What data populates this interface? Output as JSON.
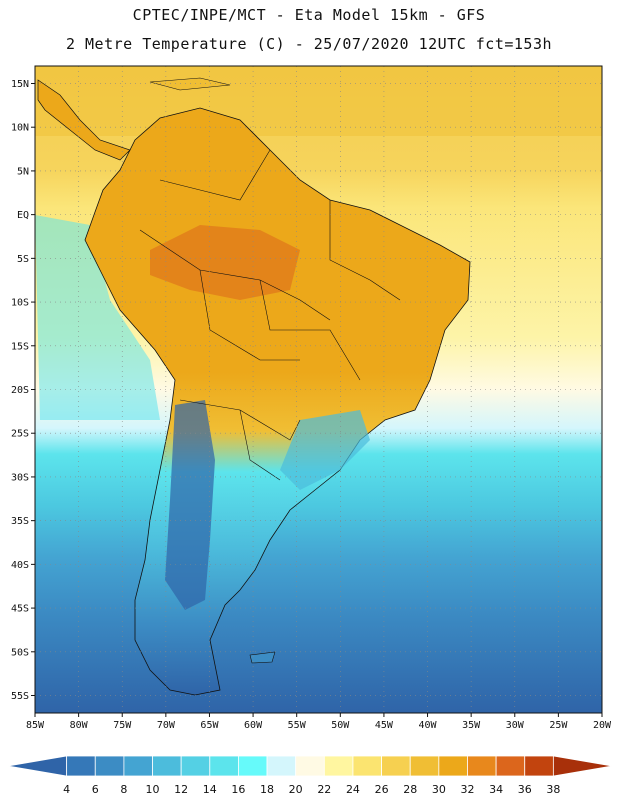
{
  "header": {
    "title_line1": "CPTEC/INPE/MCT -  Eta Model 15km - GFS",
    "title_line2": "2 Metre Temperature (C) - 25/07/2020 12UTC fct=153h"
  },
  "map": {
    "lat_labels": [
      "15N",
      "10N",
      "5N",
      "EQ",
      "5S",
      "10S",
      "15S",
      "20S",
      "25S",
      "30S",
      "35S",
      "40S",
      "45S",
      "50S",
      "55S"
    ],
    "lat_values": [
      15,
      10,
      5,
      0,
      -5,
      -10,
      -15,
      -20,
      -25,
      -30,
      -35,
      -40,
      -45,
      -50,
      -55
    ],
    "lon_labels": [
      "85W",
      "80W",
      "75W",
      "70W",
      "65W",
      "60W",
      "55W",
      "50W",
      "45W",
      "40W",
      "35W",
      "30W",
      "25W",
      "20W"
    ],
    "lon_values": [
      -85,
      -80,
      -75,
      -70,
      -65,
      -60,
      -55,
      -50,
      -45,
      -40,
      -35,
      -30,
      -25,
      -20
    ],
    "extent": {
      "lon_min": -85,
      "lon_max": -20,
      "lat_min": -57,
      "lat_max": 17
    }
  },
  "colorbar": {
    "ticks": [
      "4",
      "6",
      "8",
      "10",
      "12",
      "14",
      "16",
      "18",
      "20",
      "22",
      "24",
      "26",
      "28",
      "30",
      "32",
      "34",
      "36",
      "38"
    ],
    "colors": [
      "#2f64a8",
      "#3578b8",
      "#3c8cc4",
      "#44a4d2",
      "#4cbcdc",
      "#54d0e4",
      "#5ce4ec",
      "#66fafa",
      "#d4f6fc",
      "#fffae4",
      "#fff6a0",
      "#fbe470",
      "#f6d050",
      "#f0be34",
      "#eca81a",
      "#e8881c",
      "#dc661c",
      "#c2440e",
      "#a8300a"
    ]
  }
}
